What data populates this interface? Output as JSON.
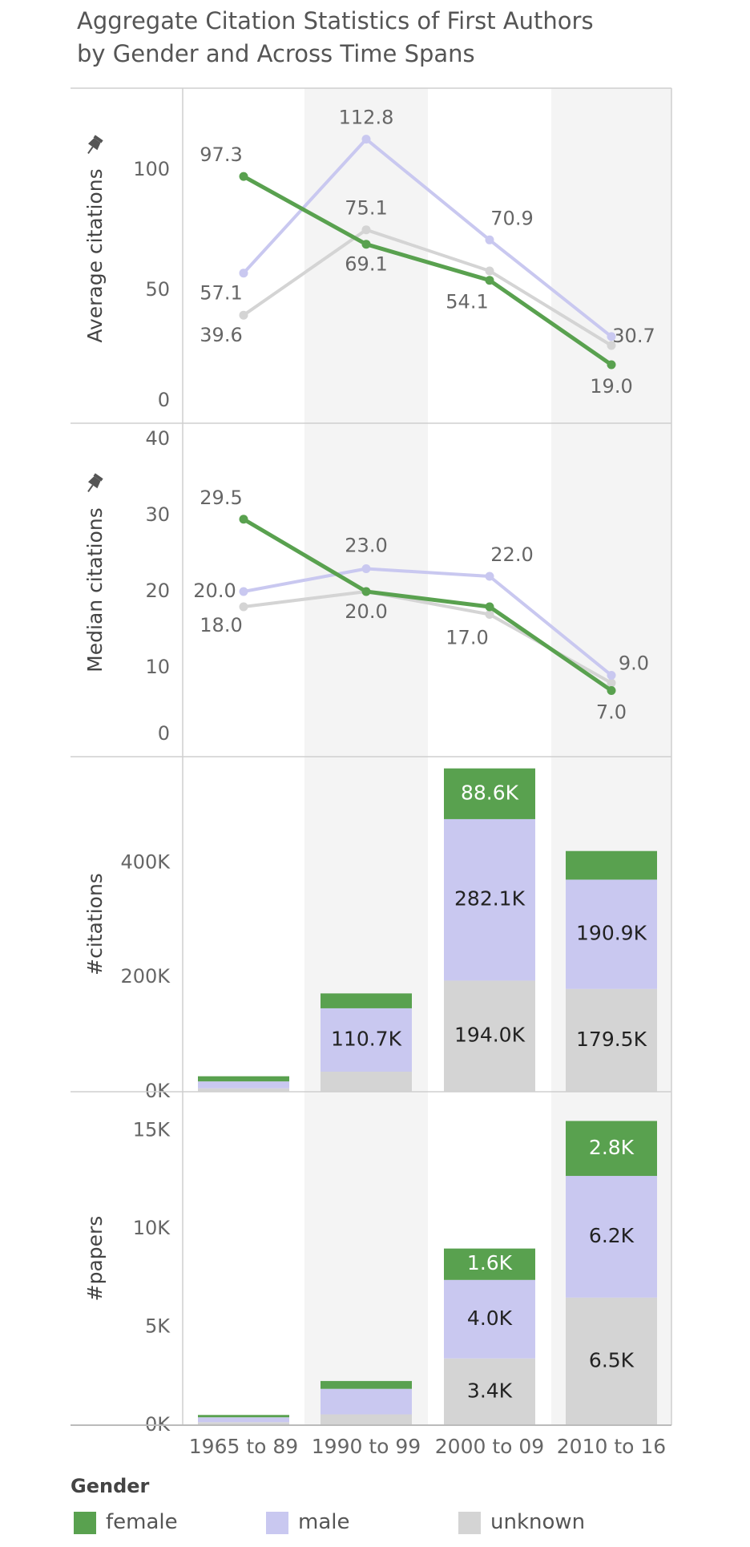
{
  "title": {
    "line1": "Aggregate Citation Statistics of First Authors",
    "line2": "by Gender and Across Time Spans"
  },
  "colors": {
    "female": "#59a14f",
    "male": "#c9c8f0",
    "unknown": "#d4d4d4"
  },
  "legend": {
    "title": "Gender",
    "items": [
      {
        "key": "female",
        "label": "female"
      },
      {
        "key": "male",
        "label": "male"
      },
      {
        "key": "unknown",
        "label": "unknown"
      }
    ]
  },
  "chart_data": [
    {
      "type": "line",
      "ylabel": "Average citations",
      "categories": [
        "1965 to 89",
        "1990 to 99",
        "2000 to 09",
        "2010 to 16"
      ],
      "ylim": [
        0,
        130
      ],
      "yticks": [
        0,
        50,
        100
      ],
      "series": [
        {
          "name": "female",
          "values": [
            97.3,
            69.1,
            54.1,
            19.0
          ],
          "labels": [
            "97.3",
            "69.1",
            "54.1",
            "19.0"
          ]
        },
        {
          "name": "male",
          "values": [
            57.1,
            112.8,
            70.9,
            30.7
          ],
          "labels": [
            "57.1",
            "112.8",
            "70.9",
            "30.7"
          ]
        },
        {
          "name": "unknown",
          "values": [
            39.6,
            75.1,
            58.0,
            27.0
          ],
          "labels": [
            "39.6",
            "75.1",
            "",
            ""
          ]
        }
      ]
    },
    {
      "type": "line",
      "ylabel": "Median citations",
      "categories": [
        "1965 to 89",
        "1990 to 99",
        "2000 to 09",
        "2010 to 16"
      ],
      "ylim": [
        0,
        40
      ],
      "yticks": [
        0,
        10,
        20,
        30,
        40
      ],
      "series": [
        {
          "name": "female",
          "values": [
            29.5,
            20.0,
            18.0,
            7.0
          ],
          "labels": [
            "29.5",
            "",
            "",
            "7.0"
          ]
        },
        {
          "name": "male",
          "values": [
            20.0,
            23.0,
            22.0,
            9.0
          ],
          "labels": [
            "20.0",
            "23.0",
            "22.0",
            "9.0"
          ]
        },
        {
          "name": "unknown",
          "values": [
            18.0,
            20.0,
            17.0,
            8.0
          ],
          "labels": [
            "18.0",
            "20.0",
            "17.0",
            ""
          ]
        }
      ]
    },
    {
      "type": "bar",
      "stacked": true,
      "ylabel": "#citations",
      "categories": [
        "1965 to 89",
        "1990 to 99",
        "2000 to 09",
        "2010 to 16"
      ],
      "ylim": [
        0,
        560000
      ],
      "yticks": [
        0,
        200000,
        400000
      ],
      "ytick_labels": [
        "0K",
        "200K",
        "400K"
      ],
      "series": [
        {
          "name": "unknown",
          "values": [
            6000,
            35000,
            194000,
            179500
          ],
          "labels": [
            "",
            "",
            "194.0K",
            "179.5K"
          ]
        },
        {
          "name": "male",
          "values": [
            12000,
            110700,
            282100,
            190900
          ],
          "labels": [
            "",
            "110.7K",
            "282.1K",
            "190.9K"
          ]
        },
        {
          "name": "female",
          "values": [
            9000,
            26000,
            88600,
            50000
          ],
          "labels": [
            "",
            "",
            "88.6K",
            ""
          ]
        }
      ]
    },
    {
      "type": "bar",
      "stacked": true,
      "ylabel": "#papers",
      "categories": [
        "1965 to 89",
        "1990 to 99",
        "2000 to 09",
        "2010 to 16"
      ],
      "ylim": [
        0,
        16500
      ],
      "yticks": [
        0,
        5000,
        10000,
        15000
      ],
      "ytick_labels": [
        "0K",
        "5K",
        "10K",
        "15K"
      ],
      "series": [
        {
          "name": "unknown",
          "values": [
            150,
            550,
            3400,
            6500
          ],
          "labels": [
            "",
            "",
            "3.4K",
            "6.5K"
          ]
        },
        {
          "name": "male",
          "values": [
            250,
            1300,
            4000,
            6200
          ],
          "labels": [
            "",
            "",
            "4.0K",
            "6.2K"
          ]
        },
        {
          "name": "female",
          "values": [
            120,
            400,
            1600,
            2800
          ],
          "labels": [
            "",
            "",
            "1.6K",
            "2.8K"
          ]
        }
      ]
    }
  ]
}
